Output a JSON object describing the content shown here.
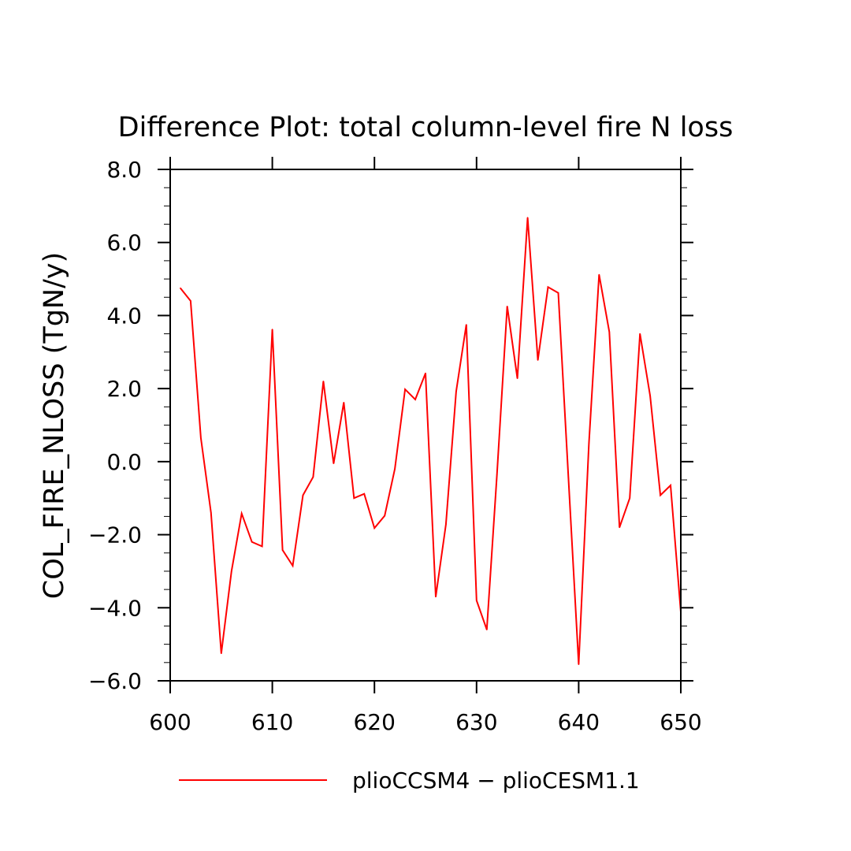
{
  "chart_data": {
    "type": "line",
    "title": "Difference Plot: total column-level fire N loss",
    "xlabel": "",
    "ylabel": "COL_FIRE_NLOSS   (TgN/y)",
    "xlim": [
      600,
      650
    ],
    "ylim": [
      -6.0,
      8.0
    ],
    "x_ticks": [
      "600",
      "610",
      "620",
      "630",
      "640",
      "650"
    ],
    "y_ticks": [
      "−6.0",
      "−4.0",
      "−2.0",
      "0.0",
      "2.0",
      "4.0",
      "6.0",
      "8.0"
    ],
    "grid": false,
    "legend_position": "bottom",
    "series": [
      {
        "name": "plioCCSM4 − plioCESM1.1",
        "color": "#ff0000",
        "x": [
          601,
          602,
          603,
          604,
          605,
          606,
          607,
          608,
          609,
          610,
          611,
          612,
          613,
          614,
          615,
          616,
          617,
          618,
          619,
          620,
          621,
          622,
          623,
          624,
          625,
          626,
          627,
          628,
          629,
          630,
          631,
          632,
          633,
          634,
          635,
          636,
          637,
          638,
          639,
          640,
          641,
          642,
          643,
          644,
          645,
          646,
          647,
          648,
          649,
          650
        ],
        "values": [
          4.75,
          4.4,
          0.65,
          -1.4,
          -5.25,
          -3.0,
          -1.42,
          -2.2,
          -2.32,
          3.62,
          -2.42,
          -2.85,
          -0.92,
          -0.42,
          2.2,
          -0.05,
          1.62,
          -1.0,
          -0.88,
          -1.82,
          -1.48,
          -0.2,
          1.98,
          1.7,
          2.42,
          -3.7,
          -1.72,
          1.92,
          3.75,
          -3.8,
          -4.6,
          -0.35,
          4.25,
          2.28,
          6.68,
          2.78,
          4.78,
          4.62,
          -0.45,
          -5.55,
          0.5,
          5.12,
          3.55,
          -1.8,
          -1.0,
          3.5,
          1.8,
          -0.92,
          -0.65,
          -4.12
        ]
      }
    ]
  }
}
